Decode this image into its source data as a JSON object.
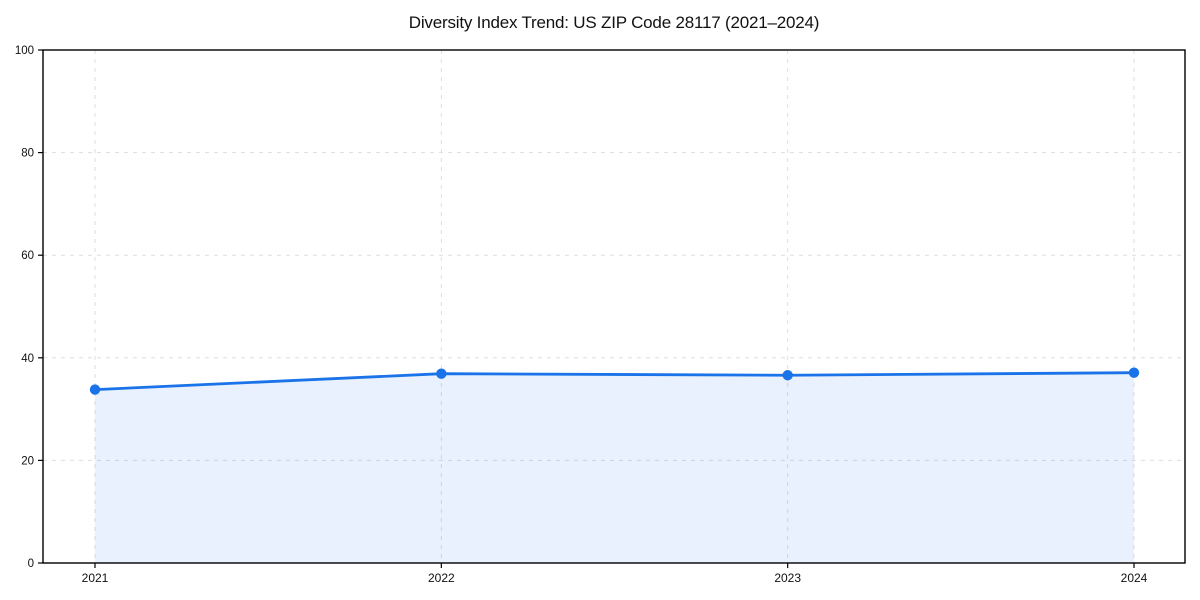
{
  "page": {
    "background": "#ffffff"
  },
  "chart_data": {
    "type": "line",
    "title": "Diversity Index Trend: US ZIP Code 28117 (2021–2024)",
    "x": [
      "2021",
      "2022",
      "2023",
      "2024"
    ],
    "series": [
      {
        "name": "Diversity Index",
        "values": [
          33.8,
          36.9,
          36.6,
          37.1
        ]
      }
    ],
    "xlabel": "",
    "ylabel": "",
    "ylim": [
      0,
      100
    ],
    "yticks": [
      0,
      20,
      40,
      60,
      80,
      100
    ],
    "grid": "dashed",
    "legend": false,
    "area_fill": true,
    "markers": true,
    "colors": {
      "line": "#1a73e8",
      "area_fill": "#1a73e8",
      "area_fill_opacity": "0.10",
      "grid": "#dedede",
      "axis": "#000000",
      "text": "#111111",
      "background": "#ffffff"
    }
  }
}
